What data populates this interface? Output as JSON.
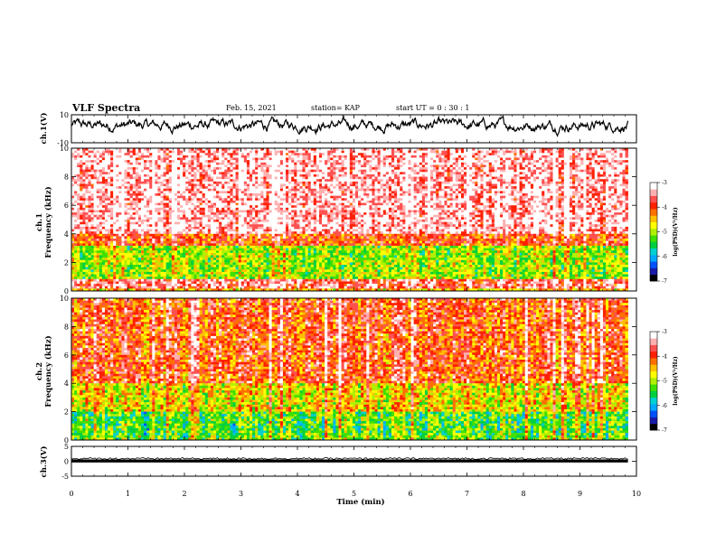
{
  "header": {
    "title": "VLF Spectra",
    "date": "Feb. 15, 2021",
    "station": "station= KAP",
    "start": "start UT =  0 : 30 : 1"
  },
  "chart_data": [
    {
      "type": "line",
      "ylabel": "ch.1(V)",
      "xlim": [
        0,
        10
      ],
      "ylim": [
        -10,
        10
      ],
      "ytick_labels": [
        "10",
        "-10"
      ],
      "noisy_level_range": [
        -3,
        8
      ],
      "series_color": "#000000"
    },
    {
      "type": "heatmap",
      "ylabel": "ch.1\nFrequency (kHz)",
      "ylabel_lines": [
        "ch.1",
        "Frequency (kHz)"
      ],
      "xlim": [
        0,
        10
      ],
      "ylim": [
        0,
        10
      ],
      "ytick_labels": [
        "0",
        "2",
        "4",
        "6",
        "8",
        "10"
      ],
      "colorbar": {
        "label": "log(PSD)(V²/Hz)",
        "range": [
          -7,
          -3
        ],
        "tick_labels": [
          "-3",
          "-4",
          "-5",
          "-6",
          "-7"
        ]
      },
      "band_profile": [
        {
          "f_range": [
            0,
            0.2
          ],
          "level": -4.5
        },
        {
          "f_range": [
            0.2,
            0.8
          ],
          "level": -3.6
        },
        {
          "f_range": [
            0.8,
            3.2
          ],
          "level": -5.0
        },
        {
          "f_range": [
            3.2,
            4.0
          ],
          "level": -4.0
        },
        {
          "f_range": [
            4.0,
            10
          ],
          "level": -3.3
        }
      ]
    },
    {
      "type": "heatmap",
      "ylabel": "ch.2\nFrequency (kHz)",
      "ylabel_lines": [
        "ch.2",
        "Frequency (kHz)"
      ],
      "xlim": [
        0,
        10
      ],
      "ylim": [
        0,
        10
      ],
      "ytick_labels": [
        "0",
        "2",
        "4",
        "6",
        "8",
        "10"
      ],
      "colorbar": {
        "label": "log(PSD)(V²/Hz)",
        "range": [
          -7,
          -3
        ],
        "tick_labels": [
          "-3",
          "-4",
          "-5",
          "-6",
          "-7"
        ]
      },
      "band_profile": [
        {
          "f_range": [
            0,
            0.3
          ],
          "level": -5.2
        },
        {
          "f_range": [
            0.3,
            2.0
          ],
          "level": -5.3
        },
        {
          "f_range": [
            2.0,
            4.0
          ],
          "level": -4.7
        },
        {
          "f_range": [
            4.0,
            10
          ],
          "level": -4.0
        }
      ]
    },
    {
      "type": "line",
      "ylabel": "ch.3(V)",
      "xlim": [
        0,
        10
      ],
      "ylim": [
        -5,
        5
      ],
      "ytick_labels": [
        "5",
        "0",
        "-5"
      ],
      "band_range": [
        -0.4,
        0.6
      ],
      "series_color": "#000000"
    }
  ],
  "xaxis": {
    "label": "Time (min)",
    "tick_labels": [
      "0",
      "1",
      "2",
      "3",
      "4",
      "5",
      "6",
      "7",
      "8",
      "9",
      "10"
    ]
  },
  "colorbar_colors": [
    "#000000",
    "#1a1aa8",
    "#0050ff",
    "#00a8ff",
    "#00d0d0",
    "#00d040",
    "#40e000",
    "#b0f000",
    "#ffff00",
    "#ffc000",
    "#ff7000",
    "#ff2000",
    "#ff5050",
    "#ffb0b0",
    "#ffffff"
  ]
}
